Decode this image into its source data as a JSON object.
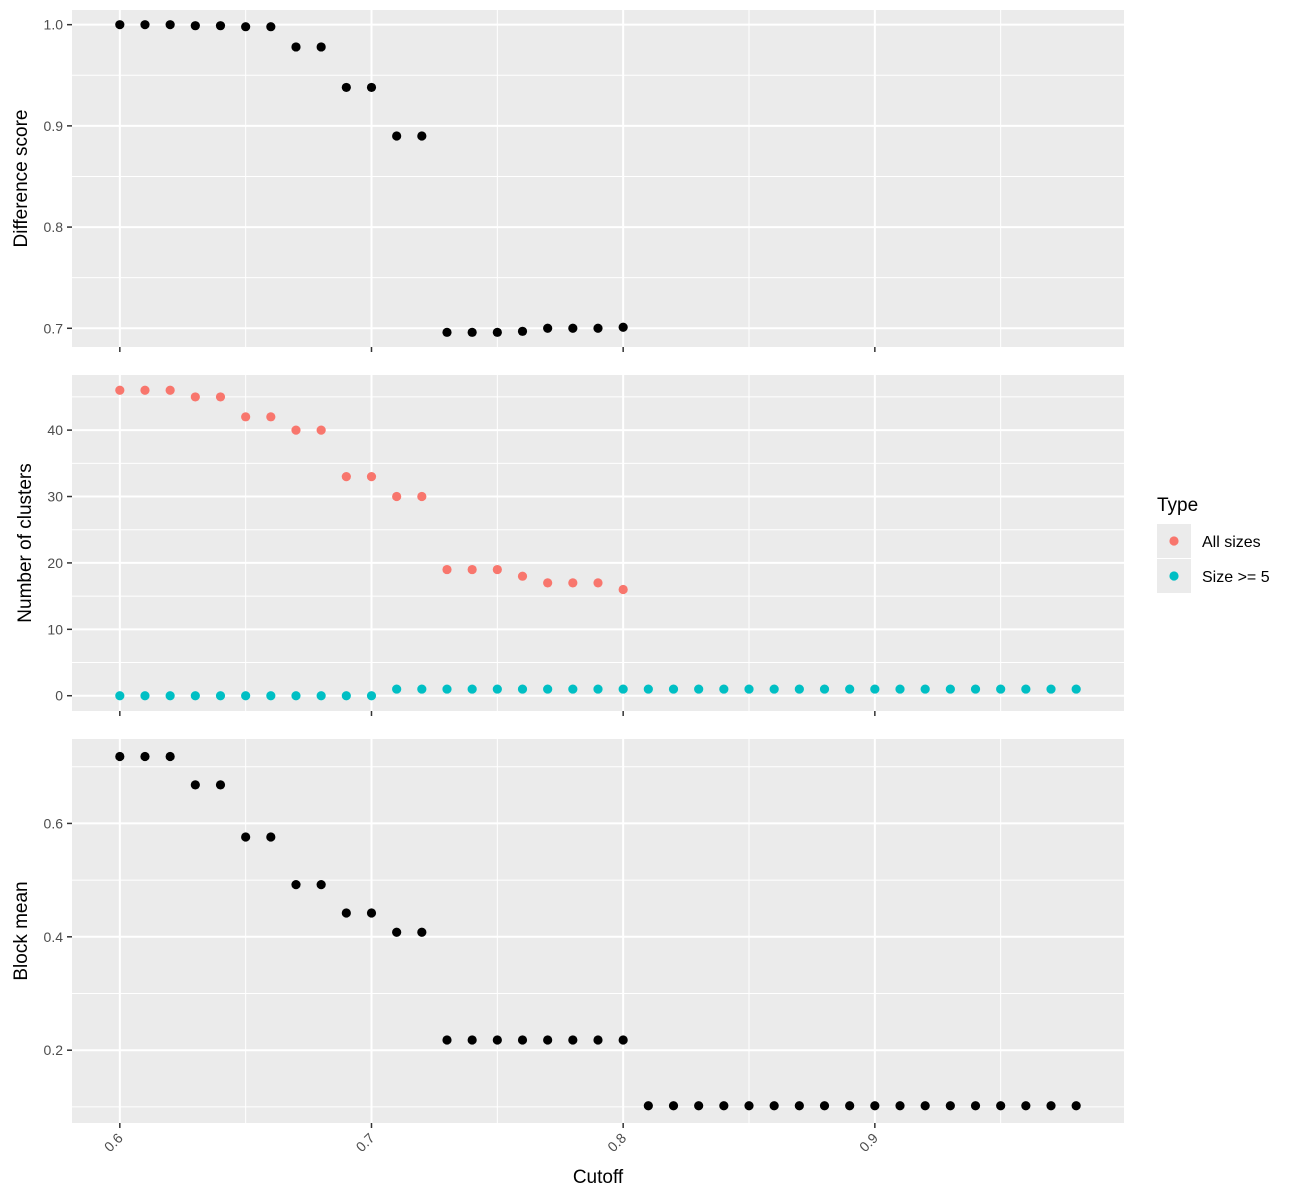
{
  "chart_data": {
    "type": "scatter",
    "layout": "faceted-vertical",
    "shared_x": {
      "label": "Cutoff",
      "range": [
        0.581,
        0.999
      ],
      "ticks": [
        0.6,
        0.7,
        0.8,
        0.9
      ],
      "tick_labels": [
        "0.6",
        "0.7",
        "0.8",
        "0.9"
      ],
      "tick_label_rotation_deg": -45
    },
    "grid": true,
    "legend": {
      "title": "Type",
      "position": "right",
      "entries": [
        {
          "label": "All sizes",
          "color": "#F8766D"
        },
        {
          "label": "Size >= 5",
          "color": "#00BFC4"
        }
      ]
    },
    "colors": {
      "panel_background": "#EBEBEB",
      "grid": "#FFFFFF",
      "default_point": "#000000",
      "tick": "#333333",
      "tick_text": "#4D4D4D"
    },
    "panels": [
      {
        "ylabel": "Difference score",
        "ylim": [
          0.6815,
          1.0145
        ],
        "y_ticks": [
          0.7,
          0.8,
          0.9,
          1.0
        ],
        "y_tick_labels": [
          "0.7",
          "0.8",
          "0.9",
          "1.0"
        ],
        "series": [
          {
            "color": "#000000",
            "x": [
              0.6,
              0.61,
              0.62,
              0.63,
              0.64,
              0.65,
              0.66,
              0.67,
              0.68,
              0.69,
              0.7,
              0.71,
              0.72,
              0.73,
              0.74,
              0.75,
              0.76,
              0.77,
              0.78,
              0.79,
              0.8
            ],
            "y": [
              1.0,
              1.0,
              1.0,
              0.999,
              0.999,
              0.998,
              0.998,
              0.978,
              0.978,
              0.938,
              0.938,
              0.89,
              0.89,
              0.696,
              0.696,
              0.696,
              0.697,
              0.7,
              0.7,
              0.7,
              0.701
            ]
          }
        ]
      },
      {
        "ylabel": "Number of clusters",
        "ylim": [
          -2.3,
          48.3
        ],
        "y_ticks": [
          0,
          10,
          20,
          30,
          40
        ],
        "y_tick_labels": [
          "0",
          "10",
          "20",
          "30",
          "40"
        ],
        "series": [
          {
            "name": "All sizes",
            "color": "#F8766D",
            "x": [
              0.6,
              0.61,
              0.62,
              0.63,
              0.64,
              0.65,
              0.66,
              0.67,
              0.68,
              0.69,
              0.7,
              0.71,
              0.72,
              0.73,
              0.74,
              0.75,
              0.76,
              0.77,
              0.78,
              0.79,
              0.8
            ],
            "y": [
              46,
              46,
              46,
              45,
              45,
              42,
              42,
              40,
              40,
              33,
              33,
              30,
              30,
              19,
              19,
              19,
              18,
              17,
              17,
              17,
              16
            ]
          },
          {
            "name": "Size >= 5",
            "color": "#00BFC4",
            "x": [
              0.6,
              0.61,
              0.62,
              0.63,
              0.64,
              0.65,
              0.66,
              0.67,
              0.68,
              0.69,
              0.7,
              0.71,
              0.72,
              0.73,
              0.74,
              0.75,
              0.76,
              0.77,
              0.78,
              0.79,
              0.8,
              0.81,
              0.82,
              0.83,
              0.84,
              0.85,
              0.86,
              0.87,
              0.88,
              0.89,
              0.9,
              0.91,
              0.92,
              0.93,
              0.94,
              0.95,
              0.96,
              0.97,
              0.98
            ],
            "y": [
              0,
              0,
              0,
              0,
              0,
              0,
              0,
              0,
              0,
              0,
              0,
              1,
              1,
              1,
              1,
              1,
              1,
              1,
              1,
              1,
              1,
              1,
              1,
              1,
              1,
              1,
              1,
              1,
              1,
              1,
              1,
              1,
              1,
              1,
              1,
              1,
              1,
              1,
              1
            ]
          }
        ]
      },
      {
        "ylabel": "Block mean",
        "ylim": [
          0.0716,
          0.7489
        ],
        "y_ticks": [
          0.2,
          0.4,
          0.6
        ],
        "y_tick_labels": [
          "0.2",
          "0.4",
          "0.6"
        ],
        "series": [
          {
            "color": "#000000",
            "x": [
              0.6,
              0.61,
              0.62,
              0.63,
              0.64,
              0.65,
              0.66,
              0.67,
              0.68,
              0.69,
              0.7,
              0.71,
              0.72,
              0.73,
              0.74,
              0.75,
              0.76,
              0.77,
              0.78,
              0.79,
              0.8,
              0.81,
              0.82,
              0.83,
              0.84,
              0.85,
              0.86,
              0.87,
              0.88,
              0.89,
              0.9,
              0.91,
              0.92,
              0.93,
              0.94,
              0.95,
              0.96,
              0.97,
              0.98
            ],
            "y": [
              0.718,
              0.718,
              0.718,
              0.668,
              0.668,
              0.576,
              0.576,
              0.492,
              0.492,
              0.442,
              0.442,
              0.408,
              0.408,
              0.218,
              0.218,
              0.218,
              0.218,
              0.218,
              0.218,
              0.218,
              0.218,
              0.102,
              0.102,
              0.102,
              0.102,
              0.102,
              0.102,
              0.102,
              0.102,
              0.102,
              0.102,
              0.102,
              0.102,
              0.102,
              0.102,
              0.102,
              0.102,
              0.102,
              0.102
            ]
          }
        ]
      }
    ]
  }
}
